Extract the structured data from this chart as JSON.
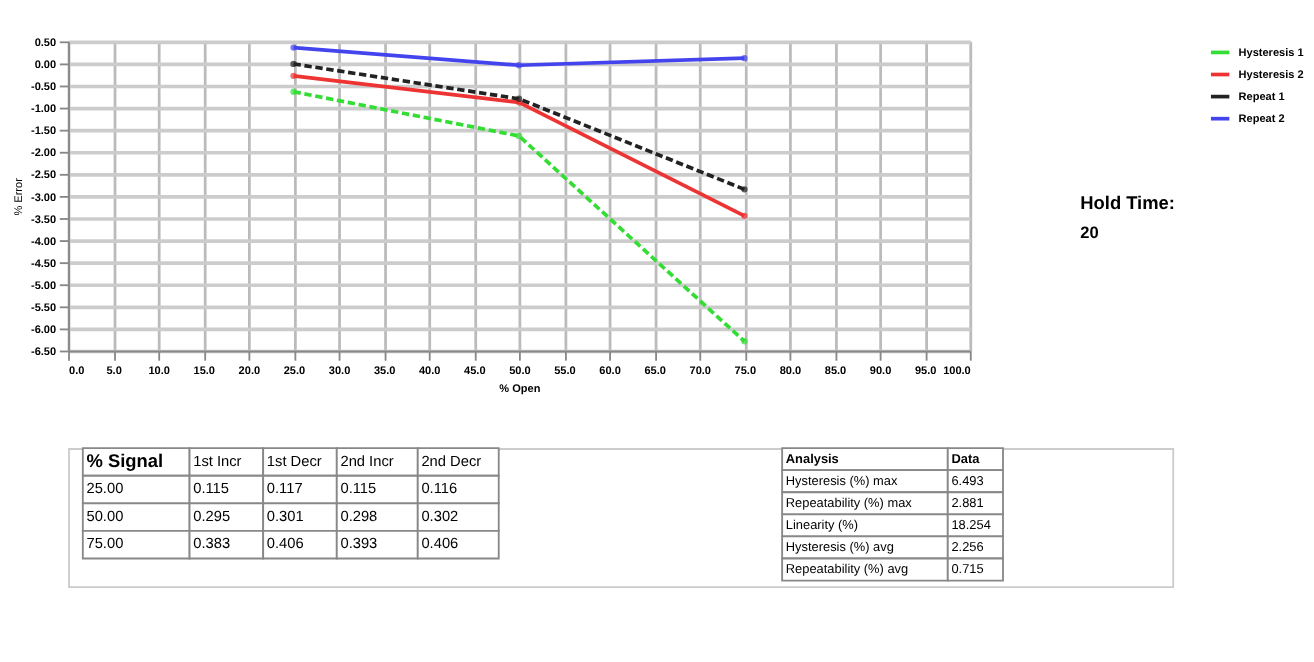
{
  "chart_data": {
    "type": "line",
    "xlabel": "% Open",
    "ylabel": "% Error",
    "x": [
      25,
      50,
      75
    ],
    "series": [
      {
        "name": "Hysteresis 1",
        "color": "#33dd33",
        "values": [
          -0.64,
          -1.64,
          -6.29
        ],
        "line_style": "dashed"
      },
      {
        "name": "Hysteresis 2",
        "color": "#ee3333",
        "values": [
          -0.28,
          -0.88,
          -3.45
        ],
        "line_style": "solid"
      },
      {
        "name": "Repeat 1",
        "color": "#222222",
        "values": [
          -0.01,
          -0.8,
          -2.85
        ],
        "line_style": "dashed"
      },
      {
        "name": "Repeat 2",
        "color": "#4444ee",
        "values": [
          0.36,
          -0.04,
          0.12
        ],
        "line_style": "solid"
      }
    ],
    "xlim": [
      0,
      100
    ],
    "xticks": [
      {
        "value": 0,
        "label": "0.0"
      },
      {
        "value": 5,
        "label": "5.0"
      },
      {
        "value": 10,
        "label": "10.0"
      },
      {
        "value": 15,
        "label": "15.0"
      },
      {
        "value": 20,
        "label": "20.0"
      },
      {
        "value": 25,
        "label": "25.0"
      },
      {
        "value": 30,
        "label": "30.0"
      },
      {
        "value": 35,
        "label": "35.0"
      },
      {
        "value": 40,
        "label": "40.0"
      },
      {
        "value": 45,
        "label": "45.0"
      },
      {
        "value": 50,
        "label": "50.0"
      },
      {
        "value": 55,
        "label": "55.0"
      },
      {
        "value": 60,
        "label": "60.0"
      },
      {
        "value": 65,
        "label": "65.0"
      },
      {
        "value": 70,
        "label": "70.0"
      },
      {
        "value": 75,
        "label": "75.0"
      },
      {
        "value": 80,
        "label": "80.0"
      },
      {
        "value": 85,
        "label": "85.0"
      },
      {
        "value": 90,
        "label": "90.0"
      },
      {
        "value": 95,
        "label": "95.0"
      },
      {
        "value": 100,
        "label": "100.0"
      }
    ],
    "ylim": [
      -6.5,
      0.5
    ],
    "yticks": [
      {
        "value": 0.5,
        "label": "0.50"
      },
      {
        "value": 0,
        "label": "0.00"
      },
      {
        "value": -0.5,
        "label": "-0.50"
      },
      {
        "value": -1,
        "label": "-1.00"
      },
      {
        "value": -1.5,
        "label": "-1.50"
      },
      {
        "value": -2,
        "label": "-2.00"
      },
      {
        "value": -2.5,
        "label": "-2.50"
      },
      {
        "value": -3,
        "label": "-3.00"
      },
      {
        "value": -3.5,
        "label": "-3.50"
      },
      {
        "value": -4,
        "label": "-4.00"
      },
      {
        "value": -4.5,
        "label": "-4.50"
      },
      {
        "value": -5,
        "label": "-5.00"
      },
      {
        "value": -5.5,
        "label": "-5.50"
      },
      {
        "value": -6,
        "label": "-6.00"
      },
      {
        "value": -6.5,
        "label": "-6.50"
      }
    ],
    "grid": true,
    "legend": "top right",
    "marker": "circle",
    "annotations": [
      "Hold Time:",
      "20",
      "% Signal",
      "1st Incr",
      "1st Decr",
      "2nd Incr",
      "2nd Decr",
      "25.00",
      "0.115",
      "0.117",
      "0.115",
      "0.116",
      "50.00",
      "0.295",
      "0.301",
      "0.298",
      "0.302",
      "75.00",
      "0.383",
      "0.406",
      "0.393",
      "0.406",
      "Analysis",
      "Data",
      "Hysteresis (%) max",
      "6.493",
      "Repeatability (%) max",
      "2.881",
      "Linearity (%)",
      "18.254",
      "Hysteresis (%) avg",
      "2.256",
      "Repeatability (%) avg",
      "0.715"
    ]
  }
}
